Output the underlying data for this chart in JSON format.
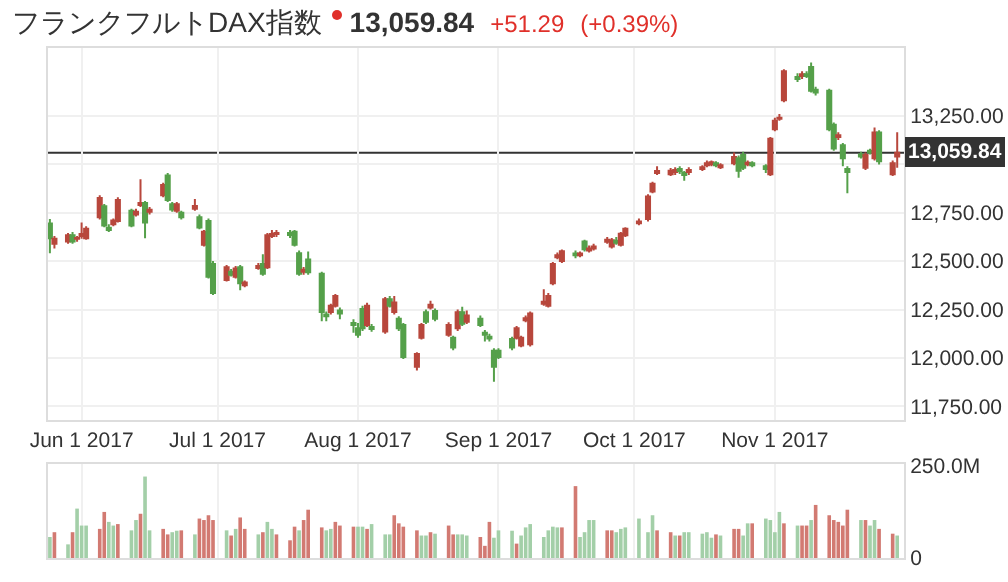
{
  "chart_data": [
    {
      "type": "candlestick",
      "title": "フランクフルトDAX指数",
      "annotations": [
        "13,059.84",
        "+51.29",
        "(+0.39%)"
      ],
      "x": [
        "2017-05-25",
        "2017-05-26",
        "2017-05-29",
        "2017-05-30",
        "2017-05-31",
        "2017-06-01",
        "2017-06-02",
        "2017-06-05",
        "2017-06-06",
        "2017-06-07",
        "2017-06-08",
        "2017-06-09",
        "2017-06-12",
        "2017-06-13",
        "2017-06-14",
        "2017-06-15",
        "2017-06-16",
        "2017-06-19",
        "2017-06-20",
        "2017-06-21",
        "2017-06-22",
        "2017-06-23",
        "2017-06-26",
        "2017-06-27",
        "2017-06-28",
        "2017-06-29",
        "2017-06-30",
        "2017-07-03",
        "2017-07-04",
        "2017-07-05",
        "2017-07-06",
        "2017-07-07",
        "2017-07-10",
        "2017-07-11",
        "2017-07-12",
        "2017-07-13",
        "2017-07-14",
        "2017-07-17",
        "2017-07-18",
        "2017-07-19",
        "2017-07-20",
        "2017-07-21",
        "2017-07-24",
        "2017-07-25",
        "2017-07-26",
        "2017-07-27",
        "2017-07-28",
        "2017-07-31",
        "2017-08-01",
        "2017-08-02",
        "2017-08-03",
        "2017-08-04",
        "2017-08-07",
        "2017-08-08",
        "2017-08-09",
        "2017-08-10",
        "2017-08-11",
        "2017-08-14",
        "2017-08-15",
        "2017-08-16",
        "2017-08-17",
        "2017-08-18",
        "2017-08-21",
        "2017-08-22",
        "2017-08-23",
        "2017-08-24",
        "2017-08-25",
        "2017-08-28",
        "2017-08-29",
        "2017-08-30",
        "2017-08-31",
        "2017-09-01",
        "2017-09-04",
        "2017-09-05",
        "2017-09-06",
        "2017-09-07",
        "2017-09-08",
        "2017-09-11",
        "2017-09-12",
        "2017-09-13",
        "2017-09-14",
        "2017-09-15",
        "2017-09-18",
        "2017-09-19",
        "2017-09-20",
        "2017-09-21",
        "2017-09-22",
        "2017-09-25",
        "2017-09-26",
        "2017-09-27",
        "2017-09-28",
        "2017-09-29",
        "2017-10-02",
        "2017-10-04",
        "2017-10-05",
        "2017-10-06",
        "2017-10-09",
        "2017-10-10",
        "2017-10-11",
        "2017-10-12",
        "2017-10-13",
        "2017-10-16",
        "2017-10-17",
        "2017-10-18",
        "2017-10-19",
        "2017-10-20",
        "2017-10-23",
        "2017-10-24",
        "2017-10-25",
        "2017-10-26",
        "2017-10-27",
        "2017-10-30",
        "2017-10-31",
        "2017-11-01",
        "2017-11-02",
        "2017-11-03",
        "2017-11-06",
        "2017-11-07",
        "2017-11-08",
        "2017-11-09",
        "2017-11-10",
        "2017-11-13",
        "2017-11-14",
        "2017-11-15",
        "2017-11-16",
        "2017-11-17",
        "2017-11-20",
        "2017-11-21",
        "2017-11-22",
        "2017-11-23",
        "2017-11-24",
        "2017-11-27",
        "2017-11-28"
      ],
      "ohlc": [
        [
          12694,
          12717,
          12541,
          12618
        ],
        [
          12590,
          12630,
          12565,
          12615
        ],
        [
          12601,
          12645,
          12590,
          12634
        ],
        [
          12634,
          12650,
          12590,
          12601
        ],
        [
          12615,
          12630,
          12600,
          12620
        ],
        [
          12630,
          12700,
          12615,
          12640
        ],
        [
          12618,
          12680,
          12610,
          12667
        ],
        [
          12727,
          12840,
          12715,
          12826
        ],
        [
          12783,
          12795,
          12675,
          12684
        ],
        [
          12672,
          12690,
          12650,
          12660
        ],
        [
          12690,
          12720,
          12680,
          12710
        ],
        [
          12707,
          12830,
          12700,
          12816
        ],
        [
          12760,
          12770,
          12675,
          12684
        ],
        [
          12740,
          12770,
          12730,
          12755
        ],
        [
          12790,
          12922,
          12780,
          12800
        ],
        [
          12800,
          12810,
          12618,
          12700
        ],
        [
          12755,
          12780,
          12740,
          12765
        ],
        [
          12840,
          12905,
          12830,
          12893
        ],
        [
          12942,
          12955,
          12805,
          12816
        ],
        [
          12793,
          12805,
          12755,
          12767
        ],
        [
          12760,
          12805,
          12750,
          12793
        ],
        [
          12750,
          12760,
          12715,
          12727
        ],
        [
          12770,
          12820,
          12760,
          12785
        ],
        [
          12727,
          12740,
          12665,
          12674
        ],
        [
          12585,
          12660,
          12575,
          12651
        ],
        [
          12707,
          12720,
          12410,
          12419
        ],
        [
          12485,
          12500,
          12325,
          12336
        ],
        [
          12402,
          12480,
          12395,
          12469
        ],
        [
          12445,
          12460,
          12420,
          12430
        ],
        [
          12419,
          12475,
          12410,
          12462
        ],
        [
          12469,
          12480,
          12350,
          12386
        ],
        [
          12375,
          12400,
          12365,
          12390
        ],
        [
          12465,
          12490,
          12455,
          12475
        ],
        [
          12485,
          12535,
          12425,
          12435
        ],
        [
          12469,
          12645,
          12460,
          12634
        ],
        [
          12630,
          12660,
          12620,
          12640
        ],
        [
          12640,
          12660,
          12625,
          12645
        ],
        [
          12645,
          12660,
          12620,
          12635
        ],
        [
          12651,
          12660,
          12575,
          12585
        ],
        [
          12541,
          12555,
          12425,
          12435
        ],
        [
          12445,
          12470,
          12430,
          12455
        ],
        [
          12508,
          12550,
          12430,
          12442
        ],
        [
          12435,
          12445,
          12190,
          12237
        ],
        [
          12225,
          12240,
          12190,
          12215
        ],
        [
          12237,
          12280,
          12225,
          12270
        ],
        [
          12270,
          12330,
          12260,
          12320
        ],
        [
          12245,
          12260,
          12200,
          12230
        ],
        [
          12180,
          12200,
          12130,
          12170
        ],
        [
          12154,
          12180,
          12105,
          12120
        ],
        [
          12253,
          12270,
          12140,
          12154
        ],
        [
          12170,
          12285,
          12160,
          12270
        ],
        [
          12160,
          12175,
          12135,
          12150
        ],
        [
          12137,
          12315,
          12125,
          12303
        ],
        [
          12303,
          12320,
          12260,
          12270
        ],
        [
          12237,
          12320,
          12225,
          12286
        ],
        [
          12203,
          12215,
          12140,
          12154
        ],
        [
          12170,
          12180,
          11995,
          12005
        ],
        [
          11955,
          12030,
          11935,
          12021
        ],
        [
          12104,
          12180,
          12095,
          12170
        ],
        [
          12236,
          12250,
          12175,
          12187
        ],
        [
          12260,
          12295,
          12250,
          12275
        ],
        [
          12243,
          12255,
          12190,
          12203
        ],
        [
          12120,
          12185,
          12110,
          12170
        ],
        [
          12104,
          12115,
          12040,
          12054
        ],
        [
          12154,
          12250,
          12140,
          12236
        ],
        [
          12236,
          12265,
          12165,
          12177
        ],
        [
          12187,
          12245,
          12175,
          12220
        ],
        [
          12203,
          12220,
          12160,
          12170
        ],
        [
          12130,
          12145,
          12085,
          12120
        ],
        [
          12110,
          12125,
          12085,
          12100
        ],
        [
          12038,
          12050,
          11878,
          11955
        ],
        [
          12038,
          12050,
          11995,
          12005
        ],
        [
          12098,
          12110,
          12040,
          12054
        ],
        [
          12104,
          12165,
          12095,
          12154
        ],
        [
          12065,
          12115,
          12055,
          12104
        ],
        [
          12195,
          12220,
          12185,
          12205
        ],
        [
          12071,
          12240,
          12060,
          12230
        ],
        [
          12280,
          12355,
          12270,
          12290
        ],
        [
          12270,
          12335,
          12260,
          12320
        ],
        [
          12386,
          12495,
          12375,
          12485
        ],
        [
          12520,
          12545,
          12510,
          12530
        ],
        [
          12501,
          12560,
          12490,
          12551
        ],
        [
          12540,
          12555,
          12515,
          12530
        ],
        [
          12530,
          12550,
          12520,
          12540
        ],
        [
          12601,
          12610,
          12550,
          12561
        ],
        [
          12555,
          12580,
          12545,
          12565
        ],
        [
          12565,
          12590,
          12555,
          12575
        ],
        [
          12600,
          12625,
          12590,
          12610
        ],
        [
          12575,
          12620,
          12565,
          12608
        ],
        [
          12605,
          12625,
          12585,
          12595
        ],
        [
          12585,
          12650,
          12575,
          12641
        ],
        [
          12634,
          12675,
          12625,
          12667
        ],
        [
          12695,
          12720,
          12685,
          12705
        ],
        [
          12717,
          12845,
          12705,
          12833
        ],
        [
          12859,
          12910,
          12850,
          12899
        ],
        [
          12955,
          12990,
          12945,
          12965
        ],
        [
          12949,
          12980,
          12940,
          12966
        ],
        [
          12960,
          12985,
          12945,
          12970
        ],
        [
          12975,
          12990,
          12950,
          12965
        ],
        [
          12955,
          12965,
          12915,
          12945
        ],
        [
          12960,
          12985,
          12945,
          12970
        ],
        [
          12975,
          12995,
          12965,
          12985
        ],
        [
          12995,
          13020,
          12985,
          13005
        ],
        [
          13000,
          13020,
          12990,
          13010
        ],
        [
          13005,
          13015,
          12985,
          12995
        ],
        [
          12985,
          13005,
          12975,
          12995
        ],
        [
          13005,
          13060,
          12995,
          13038
        ],
        [
          13031,
          13045,
          12930,
          12966
        ],
        [
          13048,
          13065,
          12970,
          12982
        ],
        [
          13000,
          13020,
          12990,
          13008
        ],
        [
          13005,
          13015,
          12985,
          12995
        ],
        [
          12990,
          13000,
          12955,
          12975
        ],
        [
          12949,
          13140,
          12940,
          13131
        ],
        [
          13181,
          13240,
          13170,
          13224
        ],
        [
          13235,
          13260,
          13225,
          13240
        ],
        [
          13330,
          13490,
          13320,
          13480
        ],
        [
          13450,
          13470,
          13425,
          13440
        ],
        [
          13455,
          13480,
          13440,
          13465
        ],
        [
          13465,
          13480,
          13445,
          13455
        ],
        [
          13502,
          13525,
          13370,
          13379
        ],
        [
          13385,
          13400,
          13355,
          13370
        ],
        [
          13379,
          13390,
          13170,
          13181
        ],
        [
          13204,
          13215,
          13070,
          13081
        ],
        [
          13140,
          13165,
          13125,
          13150
        ],
        [
          13098,
          13110,
          12990,
          13031
        ],
        [
          12975,
          12990,
          12850,
          12960
        ],
        [
          13050,
          13065,
          13030,
          13040
        ],
        [
          12982,
          13060,
          12970,
          13048
        ],
        [
          13070,
          13080,
          13050,
          13060
        ],
        [
          13031,
          13190,
          13020,
          13164
        ],
        [
          13164,
          13175,
          12999,
          13015
        ],
        [
          12949,
          13020,
          12940,
          13005
        ],
        [
          13040,
          13165,
          12982,
          13059.84
        ]
      ],
      "colors": [
        "#55a04a",
        "#b8473c",
        "#b8473c",
        "#55a04a",
        "#b8473c",
        "#b8473c",
        "#b8473c",
        "#b8473c",
        "#55a04a",
        "#55a04a",
        "#b8473c",
        "#b8473c",
        "#55a04a",
        "#b8473c",
        "#b8473c",
        "#55a04a",
        "#b8473c",
        "#b8473c",
        "#55a04a",
        "#55a04a",
        "#b8473c",
        "#55a04a",
        "#b8473c",
        "#55a04a",
        "#b8473c",
        "#55a04a",
        "#55a04a",
        "#b8473c",
        "#55a04a",
        "#b8473c",
        "#55a04a",
        "#b8473c",
        "#b8473c",
        "#55a04a",
        "#b8473c",
        "#b8473c",
        "#b8473c",
        "#55a04a",
        "#55a04a",
        "#55a04a",
        "#b8473c",
        "#55a04a",
        "#55a04a",
        "#55a04a",
        "#b8473c",
        "#b8473c",
        "#55a04a",
        "#55a04a",
        "#55a04a",
        "#55a04a",
        "#b8473c",
        "#55a04a",
        "#b8473c",
        "#55a04a",
        "#b8473c",
        "#55a04a",
        "#55a04a",
        "#b8473c",
        "#b8473c",
        "#55a04a",
        "#b8473c",
        "#55a04a",
        "#b8473c",
        "#55a04a",
        "#b8473c",
        "#55a04a",
        "#b8473c",
        "#55a04a",
        "#55a04a",
        "#55a04a",
        "#55a04a",
        "#55a04a",
        "#55a04a",
        "#b8473c",
        "#b8473c",
        "#b8473c",
        "#b8473c",
        "#b8473c",
        "#b8473c",
        "#b8473c",
        "#b8473c",
        "#b8473c",
        "#55a04a",
        "#b8473c",
        "#55a04a",
        "#b8473c",
        "#b8473c",
        "#b8473c",
        "#b8473c",
        "#55a04a",
        "#b8473c",
        "#b8473c",
        "#b8473c",
        "#b8473c",
        "#b8473c",
        "#b8473c",
        "#b8473c",
        "#b8473c",
        "#55a04a",
        "#55a04a",
        "#b8473c",
        "#b8473c",
        "#b8473c",
        "#b8473c",
        "#55a04a",
        "#b8473c",
        "#b8473c",
        "#55a04a",
        "#55a04a",
        "#b8473c",
        "#55a04a",
        "#55a04a",
        "#b8473c",
        "#b8473c",
        "#b8473c",
        "#b8473c",
        "#55a04a",
        "#b8473c",
        "#55a04a",
        "#55a04a",
        "#55a04a",
        "#55a04a",
        "#55a04a",
        "#b8473c",
        "#55a04a",
        "#55a04a",
        "#55a04a",
        "#b8473c",
        "#55a04a",
        "#b8473c",
        "#55a04a",
        "#b8473c",
        "#b8473c"
      ],
      "xlim": [
        "2017-05-24T14:00",
        "2017-11-29T12:00"
      ],
      "xticks": [
        {
          "value": "2017-06-01",
          "label": "Jun 1 2017"
        },
        {
          "value": "2017-07-01",
          "label": "Jul 1 2017"
        },
        {
          "value": "2017-08-01",
          "label": "Aug 1 2017"
        },
        {
          "value": "2017-09-01",
          "label": "Sep 1 2017"
        },
        {
          "value": "2017-10-01",
          "label": "Oct 1 2017"
        },
        {
          "value": "2017-11-01",
          "label": "Nov 1 2017"
        }
      ],
      "ylim": [
        11680,
        13600
      ],
      "yticks": [
        {
          "value": 11750,
          "label": "11,750.00"
        },
        {
          "value": 12000,
          "label": "12,000.00"
        },
        {
          "value": 12250,
          "label": "12,250.00"
        },
        {
          "value": 12500,
          "label": "12,500.00"
        },
        {
          "value": 12750,
          "label": "12,750.00"
        },
        {
          "value": 13000,
          "label": null
        },
        {
          "value": 13250,
          "label": "13,250.00"
        }
      ],
      "ref_lines": [
        {
          "axis": "y",
          "value": 13059.84,
          "label": "13,059.84",
          "color": "#333333"
        }
      ],
      "grid": true
    },
    {
      "type": "bar",
      "x": [
        "2017-05-25",
        "2017-05-26",
        "2017-05-29",
        "2017-05-30",
        "2017-05-31",
        "2017-06-01",
        "2017-06-02",
        "2017-06-05",
        "2017-06-06",
        "2017-06-07",
        "2017-06-08",
        "2017-06-09",
        "2017-06-12",
        "2017-06-13",
        "2017-06-14",
        "2017-06-15",
        "2017-06-16",
        "2017-06-19",
        "2017-06-20",
        "2017-06-21",
        "2017-06-22",
        "2017-06-23",
        "2017-06-26",
        "2017-06-27",
        "2017-06-28",
        "2017-06-29",
        "2017-06-30",
        "2017-07-03",
        "2017-07-04",
        "2017-07-05",
        "2017-07-06",
        "2017-07-07",
        "2017-07-10",
        "2017-07-11",
        "2017-07-12",
        "2017-07-13",
        "2017-07-14",
        "2017-07-17",
        "2017-07-18",
        "2017-07-19",
        "2017-07-20",
        "2017-07-21",
        "2017-07-24",
        "2017-07-25",
        "2017-07-26",
        "2017-07-27",
        "2017-07-28",
        "2017-07-31",
        "2017-08-01",
        "2017-08-02",
        "2017-08-03",
        "2017-08-04",
        "2017-08-07",
        "2017-08-08",
        "2017-08-09",
        "2017-08-10",
        "2017-08-11",
        "2017-08-14",
        "2017-08-15",
        "2017-08-16",
        "2017-08-17",
        "2017-08-18",
        "2017-08-21",
        "2017-08-22",
        "2017-08-23",
        "2017-08-24",
        "2017-08-25",
        "2017-08-28",
        "2017-08-29",
        "2017-08-30",
        "2017-08-31",
        "2017-09-01",
        "2017-09-04",
        "2017-09-05",
        "2017-09-06",
        "2017-09-07",
        "2017-09-08",
        "2017-09-11",
        "2017-09-12",
        "2017-09-13",
        "2017-09-14",
        "2017-09-15",
        "2017-09-18",
        "2017-09-19",
        "2017-09-20",
        "2017-09-21",
        "2017-09-22",
        "2017-09-25",
        "2017-09-26",
        "2017-09-27",
        "2017-09-28",
        "2017-09-29",
        "2017-10-02",
        "2017-10-04",
        "2017-10-05",
        "2017-10-06",
        "2017-10-09",
        "2017-10-10",
        "2017-10-11",
        "2017-10-12",
        "2017-10-13",
        "2017-10-16",
        "2017-10-17",
        "2017-10-18",
        "2017-10-19",
        "2017-10-20",
        "2017-10-23",
        "2017-10-24",
        "2017-10-25",
        "2017-10-26",
        "2017-10-27",
        "2017-10-30",
        "2017-10-31",
        "2017-11-01",
        "2017-11-02",
        "2017-11-03",
        "2017-11-06",
        "2017-11-07",
        "2017-11-08",
        "2017-11-09",
        "2017-11-10",
        "2017-11-13",
        "2017-11-14",
        "2017-11-15",
        "2017-11-16",
        "2017-11-17",
        "2017-11-20",
        "2017-11-21",
        "2017-11-22",
        "2017-11-23",
        "2017-11-24",
        "2017-11-27",
        "2017-11-28"
      ],
      "values": [
        57,
        70,
        37,
        70,
        134,
        88,
        88,
        79,
        125,
        98,
        88,
        92,
        75,
        103,
        120,
        221,
        75,
        79,
        64,
        70,
        74,
        75,
        64,
        107,
        103,
        116,
        103,
        75,
        61,
        79,
        110,
        79,
        64,
        70,
        98,
        79,
        64,
        48,
        85,
        75,
        103,
        131,
        83,
        75,
        79,
        98,
        88,
        85,
        85,
        85,
        79,
        92,
        64,
        64,
        116,
        94,
        85,
        75,
        61,
        61,
        70,
        66,
        88,
        64,
        64,
        64,
        61,
        57,
        33,
        98,
        55,
        75,
        74,
        39,
        61,
        83,
        92,
        57,
        75,
        85,
        83,
        83,
        195,
        57,
        70,
        103,
        103,
        75,
        75,
        70,
        79,
        83,
        107,
        70,
        116,
        75,
        70,
        61,
        61,
        70,
        70,
        66,
        70,
        55,
        64,
        61,
        79,
        79,
        61,
        94,
        94,
        107,
        103,
        70,
        125,
        94,
        88,
        88,
        88,
        103,
        144,
        116,
        103,
        98,
        88,
        131,
        103,
        103,
        88,
        103,
        79,
        66,
        61
      ],
      "colors": [
        "#a3cfa8",
        "#d27a72",
        "#a3cfa8",
        "#d27a72",
        "#a3cfa8",
        "#a3cfa8",
        "#a3cfa8",
        "#d27a72",
        "#d27a72",
        "#a3cfa8",
        "#a3cfa8",
        "#d27a72",
        "#a3cfa8",
        "#a3cfa8",
        "#d27a72",
        "#a3cfa8",
        "#a3cfa8",
        "#d27a72",
        "#d27a72",
        "#a3cfa8",
        "#a3cfa8",
        "#d27a72",
        "#a3cfa8",
        "#d27a72",
        "#d27a72",
        "#d27a72",
        "#d27a72",
        "#a3cfa8",
        "#d27a72",
        "#a3cfa8",
        "#d27a72",
        "#d27a72",
        "#a3cfa8",
        "#d27a72",
        "#a3cfa8",
        "#a3cfa8",
        "#d27a72",
        "#d27a72",
        "#d27a72",
        "#a3cfa8",
        "#d27a72",
        "#d27a72",
        "#d27a72",
        "#a3cfa8",
        "#a3cfa8",
        "#d27a72",
        "#d27a72",
        "#d27a72",
        "#a3cfa8",
        "#a3cfa8",
        "#d27a72",
        "#a3cfa8",
        "#a3cfa8",
        "#a3cfa8",
        "#d27a72",
        "#d27a72",
        "#d27a72",
        "#d27a72",
        "#a3cfa8",
        "#a3cfa8",
        "#d27a72",
        "#a3cfa8",
        "#d27a72",
        "#d27a72",
        "#a3cfa8",
        "#a3cfa8",
        "#a3cfa8",
        "#d27a72",
        "#d27a72",
        "#d27a72",
        "#a3cfa8",
        "#a3cfa8",
        "#a3cfa8",
        "#d27a72",
        "#a3cfa8",
        "#a3cfa8",
        "#a3cfa8",
        "#a3cfa8",
        "#a3cfa8",
        "#a3cfa8",
        "#a3cfa8",
        "#d27a72",
        "#d27a72",
        "#a3cfa8",
        "#a3cfa8",
        "#a3cfa8",
        "#a3cfa8",
        "#d27a72",
        "#d27a72",
        "#a3cfa8",
        "#a3cfa8",
        "#a3cfa8",
        "#a3cfa8",
        "#a3cfa8",
        "#a3cfa8",
        "#d27a72",
        "#d27a72",
        "#a3cfa8",
        "#d27a72",
        "#a3cfa8",
        "#a3cfa8",
        "#a3cfa8",
        "#a3cfa8",
        "#a3cfa8",
        "#d27a72",
        "#a3cfa8",
        "#d27a72",
        "#d27a72",
        "#a3cfa8",
        "#a3cfa8",
        "#d27a72",
        "#a3cfa8",
        "#a3cfa8",
        "#a3cfa8",
        "#a3cfa8",
        "#d27a72",
        "#a3cfa8",
        "#d27a72",
        "#d27a72",
        "#a3cfa8",
        "#d27a72",
        "#d27a72",
        "#d27a72",
        "#d27a72",
        "#d27a72",
        "#d27a72",
        "#a3cfa8",
        "#d27a72",
        "#a3cfa8",
        "#a3cfa8",
        "#d27a72",
        "#d27a72",
        "#a3cfa8"
      ],
      "xlim": [
        "2017-05-24T14:00",
        "2017-11-29T12:00"
      ],
      "ylim": [
        0,
        255
      ],
      "yticks": [
        0,
        {
          "value": 250,
          "label": "250.0M"
        }
      ],
      "tick_labels": "y",
      "grid": true
    }
  ]
}
